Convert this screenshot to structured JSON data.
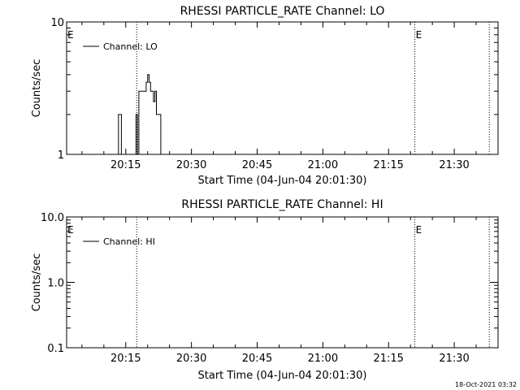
{
  "chart_data": [
    {
      "type": "line",
      "title": "RHESSI PARTICLE_RATE Channel: LO",
      "xlabel": "Start Time (04-Jun-04 20:01:30)",
      "ylabel": "Counts/sec",
      "xlim": [
        "20:01:30",
        "21:40:00"
      ],
      "ylim": [
        1,
        10
      ],
      "yscale": "log",
      "xticks": [
        "20:15",
        "20:30",
        "20:45",
        "21:00",
        "21:15",
        "21:30"
      ],
      "yticks": [
        "1",
        "10"
      ],
      "legend": {
        "label": "Channel: LO",
        "position": "top-left"
      },
      "event_marker": "E",
      "event_lines": [
        "20:17:30",
        "21:21:00",
        "21:38:00"
      ],
      "event_labels_at": [
        "20:01:30",
        "21:21:00"
      ],
      "series": [
        {
          "x": [
            "20:13:00",
            "20:13:20",
            "20:13:40",
            "20:14:00",
            "20:14:20",
            "20:14:40",
            "20:15:00",
            "20:15:20",
            "20:15:40",
            "20:16:00",
            "20:16:20",
            "20:16:40",
            "20:17:00",
            "20:17:20",
            "20:17:40",
            "20:18:00",
            "20:18:20",
            "20:18:40",
            "20:19:00",
            "20:19:20",
            "20:19:40",
            "20:20:00",
            "20:20:20",
            "20:20:40",
            "20:21:00",
            "20:21:20",
            "20:21:40",
            "20:22:00",
            "20:22:20",
            "20:22:40",
            "20:23:00",
            "20:23:20",
            "20:23:40",
            "20:24:00",
            "20:24:20",
            "20:24:40",
            "20:25:00"
          ],
          "y": [
            1,
            2,
            2,
            1,
            1,
            1,
            1,
            1,
            1,
            1,
            1,
            1,
            1,
            2,
            1,
            3,
            3,
            3,
            3,
            3,
            3.5,
            4,
            3.5,
            3,
            3,
            2.5,
            3,
            2,
            2,
            2,
            1,
            1,
            1,
            1,
            1,
            1,
            1
          ]
        }
      ]
    },
    {
      "type": "line",
      "title": "RHESSI PARTICLE_RATE Channel: HI",
      "xlabel": "Start Time (04-Jun-04 20:01:30)",
      "ylabel": "Counts/sec",
      "xlim": [
        "20:01:30",
        "21:40:00"
      ],
      "ylim": [
        0.1,
        10
      ],
      "yscale": "log",
      "xticks": [
        "20:15",
        "20:30",
        "20:45",
        "21:00",
        "21:15",
        "21:30"
      ],
      "yticks": [
        "0.1",
        "1.0",
        "10.0"
      ],
      "legend": {
        "label": "Channel: HI",
        "position": "top-left"
      },
      "event_marker": "E",
      "event_lines": [
        "20:17:30",
        "21:21:00",
        "21:38:00"
      ],
      "event_labels_at": [
        "20:01:30",
        "21:21:00"
      ],
      "series": [
        {
          "x": [],
          "y": []
        }
      ]
    }
  ],
  "footer": {
    "timestamp": "18-Oct-2021 03:32"
  }
}
